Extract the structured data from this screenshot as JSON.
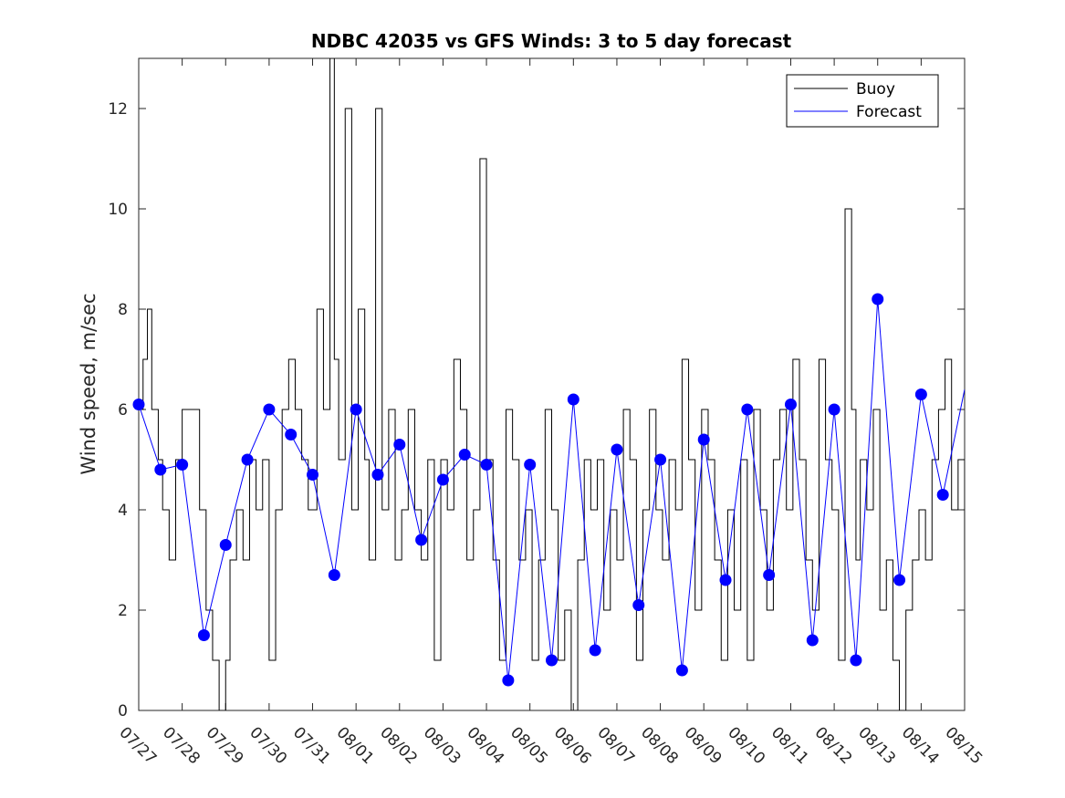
{
  "chart_data": {
    "type": "line",
    "title": "NDBC 42035 vs GFS Winds: 3 to 5 day forecast",
    "xlabel": "",
    "ylabel": "Wind speed, m/sec",
    "xlim": [
      "07/27",
      "08/15"
    ],
    "ylim": [
      0,
      13
    ],
    "x_tick_labels": [
      "07/27",
      "07/28",
      "07/29",
      "07/30",
      "07/31",
      "08/01",
      "08/02",
      "08/03",
      "08/04",
      "08/05",
      "08/06",
      "08/07",
      "08/08",
      "08/09",
      "08/10",
      "08/11",
      "08/12",
      "08/13",
      "08/14",
      "08/15"
    ],
    "y_ticks": [
      0,
      2,
      4,
      6,
      8,
      10,
      12
    ],
    "legend": {
      "placement": "top-right",
      "entries": [
        {
          "label": "Buoy",
          "color": "#000000"
        },
        {
          "label": "Forecast",
          "color": "#0000ff"
        }
      ]
    },
    "series": [
      {
        "name": "Buoy",
        "color": "#000000",
        "style": "step",
        "x_days": [
          0,
          0.1,
          0.2,
          0.3,
          0.45,
          0.55,
          0.7,
          0.85,
          1.0,
          1.1,
          1.25,
          1.4,
          1.55,
          1.7,
          1.85,
          2.0,
          2.1,
          2.25,
          2.4,
          2.55,
          2.7,
          2.85,
          3.0,
          3.15,
          3.3,
          3.45,
          3.6,
          3.75,
          3.9,
          4.1,
          4.25,
          4.4,
          4.5,
          4.6,
          4.75,
          4.9,
          5.05,
          5.2,
          5.3,
          5.45,
          5.6,
          5.75,
          5.9,
          6.05,
          6.2,
          6.35,
          6.5,
          6.65,
          6.8,
          6.95,
          7.1,
          7.25,
          7.4,
          7.55,
          7.7,
          7.85,
          8.0,
          8.15,
          8.3,
          8.45,
          8.6,
          8.75,
          8.9,
          9.05,
          9.2,
          9.35,
          9.5,
          9.65,
          9.8,
          9.95,
          10.1,
          10.25,
          10.4,
          10.55,
          10.7,
          10.85,
          11.0,
          11.15,
          11.3,
          11.45,
          11.6,
          11.75,
          11.9,
          12.05,
          12.2,
          12.35,
          12.5,
          12.65,
          12.8,
          12.95,
          13.1,
          13.25,
          13.4,
          13.55,
          13.7,
          13.85,
          14.0,
          14.15,
          14.3,
          14.45,
          14.6,
          14.75,
          14.9,
          15.05,
          15.2,
          15.35,
          15.5,
          15.65,
          15.8,
          15.95,
          16.1,
          16.25,
          16.4,
          16.5,
          16.6,
          16.75,
          16.9,
          17.05,
          17.2,
          17.35,
          17.5,
          17.65,
          17.8,
          17.95,
          18.1,
          18.25,
          18.4,
          18.55,
          18.7,
          18.85,
          19.0
        ],
        "values": [
          6,
          7,
          8,
          6,
          5,
          4,
          3,
          5,
          6,
          6,
          6,
          4,
          2,
          1,
          0,
          1,
          3,
          4,
          3,
          5,
          4,
          5,
          1,
          4,
          6,
          7,
          6,
          5,
          4,
          8,
          6,
          13,
          7,
          5,
          12,
          4,
          8,
          5,
          3,
          12,
          4,
          6,
          3,
          4,
          6,
          4,
          3,
          5,
          1,
          5,
          4,
          7,
          6,
          3,
          4,
          11,
          5,
          3,
          1,
          6,
          5,
          3,
          4,
          1,
          3,
          6,
          4,
          1,
          2,
          0,
          3,
          5,
          4,
          5,
          2,
          4,
          3,
          6,
          5,
          1,
          4,
          6,
          4,
          3,
          5,
          4,
          7,
          5,
          2,
          6,
          5,
          3,
          1,
          4,
          2,
          5,
          1,
          6,
          4,
          2,
          5,
          6,
          4,
          7,
          5,
          3,
          2,
          7,
          5,
          4,
          1,
          10,
          6,
          3,
          5,
          4,
          6,
          2,
          3,
          1,
          0,
          2,
          3,
          4,
          3,
          5,
          6,
          7,
          4,
          5,
          3
        ]
      },
      {
        "name": "Forecast",
        "color": "#0000ff",
        "x_days": [
          0,
          0.5,
          1.0,
          1.5,
          2.0,
          2.5,
          3.0,
          3.5,
          4.0,
          4.5,
          5.0,
          5.5,
          6.0,
          6.5,
          7.0,
          7.5,
          8.0,
          8.5,
          9.0,
          9.5,
          10.0,
          10.5,
          11.0,
          11.5,
          12.0,
          12.5,
          13.0,
          13.5,
          14.0,
          14.5,
          15.0,
          15.5,
          16.0,
          16.5,
          17.0,
          17.5,
          18.0,
          18.5,
          19.0
        ],
        "values": [
          6.1,
          4.8,
          4.9,
          1.5,
          3.3,
          5.0,
          6.0,
          5.5,
          4.7,
          2.7,
          6.0,
          4.7,
          5.3,
          3.4,
          4.6,
          5.1,
          4.9,
          0.6,
          4.9,
          1.0,
          6.2,
          1.2,
          5.2,
          2.1,
          5.0,
          0.8,
          5.4,
          2.6,
          6.0,
          2.7,
          6.1,
          1.4,
          6.0,
          1.0,
          8.2,
          2.6,
          6.3,
          4.3,
          6.4
        ]
      }
    ],
    "markers": {
      "color": "#0000ff",
      "x_days": [
        0,
        0.5,
        1.0,
        1.5,
        2.0,
        2.5,
        3.0,
        3.5,
        4.0,
        4.5,
        5.0,
        5.5,
        6.0,
        6.5,
        7.0,
        7.5,
        8.0,
        8.5,
        9.0,
        9.5,
        10.0,
        10.5,
        11.0,
        11.5,
        12.0,
        12.5,
        13.0,
        13.5,
        14.0,
        14.5,
        15.0,
        15.5,
        16.0,
        16.5,
        17.0,
        17.5,
        18.0,
        18.5
      ],
      "values": [
        6.1,
        4.8,
        4.9,
        1.5,
        3.3,
        5.0,
        6.0,
        5.5,
        4.7,
        2.7,
        6.0,
        4.7,
        5.3,
        3.4,
        4.6,
        5.1,
        4.9,
        0.6,
        4.9,
        1.0,
        6.2,
        1.2,
        5.2,
        2.1,
        5.0,
        0.8,
        5.4,
        2.6,
        6.0,
        2.7,
        6.1,
        1.4,
        6.0,
        1.0,
        8.2,
        2.6,
        6.3,
        4.3
      ]
    }
  }
}
